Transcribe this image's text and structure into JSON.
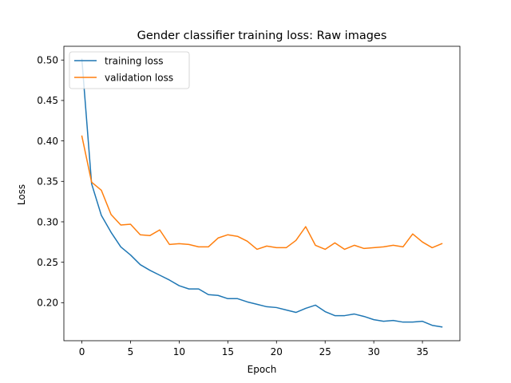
{
  "chart_data": {
    "type": "line",
    "title": "Gender classifier training loss: Raw images",
    "xlabel": "Epoch",
    "ylabel": "Loss",
    "xlim": [
      -1.85,
      38.85
    ],
    "ylim": [
      0.153,
      0.517
    ],
    "xticks": [
      0,
      5,
      10,
      15,
      20,
      25,
      30,
      35
    ],
    "yticks": [
      0.2,
      0.25,
      0.3,
      0.35,
      0.4,
      0.45,
      0.5
    ],
    "grid": false,
    "legend_position": "top-left",
    "x": [
      0,
      1,
      2,
      3,
      4,
      5,
      6,
      7,
      8,
      9,
      10,
      11,
      12,
      13,
      14,
      15,
      16,
      17,
      18,
      19,
      20,
      21,
      22,
      23,
      24,
      25,
      26,
      27,
      28,
      29,
      30,
      31,
      32,
      33,
      34,
      35,
      36,
      37
    ],
    "series": [
      {
        "name": "training loss",
        "color": "#1f77b4",
        "values": [
          0.501,
          0.347,
          0.308,
          0.287,
          0.269,
          0.259,
          0.247,
          0.24,
          0.234,
          0.228,
          0.221,
          0.217,
          0.217,
          0.21,
          0.209,
          0.205,
          0.205,
          0.201,
          0.198,
          0.195,
          0.194,
          0.191,
          0.188,
          0.193,
          0.197,
          0.189,
          0.184,
          0.184,
          0.186,
          0.183,
          0.179,
          0.177,
          0.178,
          0.176,
          0.176,
          0.177,
          0.172,
          0.17
        ]
      },
      {
        "name": "validation loss",
        "color": "#ff7f0e",
        "values": [
          0.406,
          0.349,
          0.339,
          0.309,
          0.296,
          0.297,
          0.284,
          0.283,
          0.29,
          0.272,
          0.273,
          0.272,
          0.269,
          0.269,
          0.28,
          0.284,
          0.282,
          0.276,
          0.266,
          0.27,
          0.268,
          0.268,
          0.277,
          0.294,
          0.271,
          0.266,
          0.274,
          0.266,
          0.271,
          0.267,
          0.268,
          0.269,
          0.271,
          0.269,
          0.285,
          0.275,
          0.268,
          0.273
        ]
      }
    ]
  }
}
